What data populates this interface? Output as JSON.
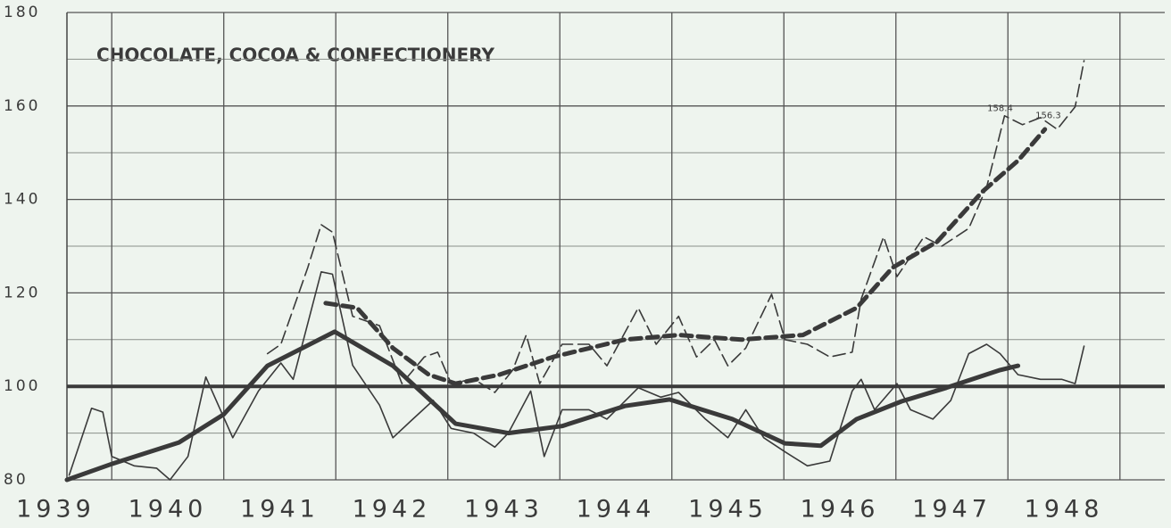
{
  "chart_data": {
    "type": "line",
    "title": "CHOCOLATE, COCOA & CONFECTIONERY",
    "xlim": [
      1939.6,
      1949.4
    ],
    "xticks": [
      {
        "value": 1939.5,
        "label": "1939"
      },
      {
        "value": 1940.5,
        "label": "1940"
      },
      {
        "value": 1941.5,
        "label": "1941"
      },
      {
        "value": 1942.5,
        "label": "1942"
      },
      {
        "value": 1943.5,
        "label": "1943"
      },
      {
        "value": 1944.5,
        "label": "1944"
      },
      {
        "value": 1945.5,
        "label": "1945"
      },
      {
        "value": 1946.5,
        "label": "1946"
      },
      {
        "value": 1947.5,
        "label": "1947"
      },
      {
        "value": 1948.5,
        "label": "1948"
      }
    ],
    "xgrid": [
      1940,
      1941,
      1942,
      1943,
      1944,
      1945,
      1946,
      1947,
      1948,
      1949
    ],
    "ylim": [
      80,
      180
    ],
    "yticks": [
      80,
      100,
      120,
      140,
      160,
      180
    ],
    "yminor": [
      90,
      110,
      130,
      150,
      170
    ],
    "reference_line": 100,
    "grid": true,
    "color": "#3a3a3a",
    "series": [
      {
        "weight": "thin",
        "dashed": false,
        "x": [
          1939.62,
          1939.82,
          1939.92,
          1940.0,
          1940.2,
          1940.4,
          1940.52,
          1940.68,
          1940.84,
          1941.08,
          1941.31,
          1941.51,
          1941.62,
          1941.87,
          1941.97,
          1942.15,
          1942.39,
          1942.51,
          1942.67,
          1942.87,
          1943.03,
          1943.23,
          1943.42,
          1943.54,
          1943.74,
          1943.86,
          1944.02,
          1944.26,
          1944.42,
          1944.7,
          1944.9,
          1945.06,
          1945.3,
          1945.5,
          1945.66,
          1945.82,
          1946.01,
          1946.21,
          1946.41,
          1946.61,
          1946.69,
          1946.81,
          1947.01,
          1947.13,
          1947.33,
          1947.49,
          1947.65,
          1947.81,
          1947.93,
          1948.09,
          1948.29,
          1948.48,
          1948.6,
          1948.68
        ],
        "values": [
          81,
          95.3,
          94.5,
          85,
          83,
          82.5,
          80,
          85,
          102,
          89,
          99,
          105,
          101.5,
          124.5,
          124,
          104.5,
          96,
          89,
          92.6,
          97,
          91,
          90,
          87,
          90,
          99,
          85,
          95,
          95,
          93,
          99.7,
          97.7,
          98.7,
          93,
          89,
          95,
          89,
          86,
          83,
          84,
          99,
          101.5,
          95,
          100.6,
          95,
          93,
          97,
          107,
          109,
          107,
          102.5,
          101.5,
          101.5,
          100.6,
          108.6
        ]
      },
      {
        "weight": "thick",
        "dashed": false,
        "x": [
          1939.6,
          1940.0,
          1940.6,
          1941.0,
          1941.39,
          1941.99,
          1942.51,
          1943.07,
          1943.54,
          1944.02,
          1944.58,
          1944.98,
          1945.54,
          1946.01,
          1946.33,
          1946.65,
          1947.05,
          1947.45,
          1947.93,
          1948.09
        ],
        "values": [
          80,
          83.4,
          88,
          94,
          104.4,
          111.7,
          104.4,
          92,
          90,
          91.5,
          95.8,
          97.2,
          93,
          87.8,
          87.3,
          93,
          96.8,
          99.7,
          103.5,
          104.4
        ]
      },
      {
        "weight": "thin",
        "dashed": true,
        "x": [
          1941.39,
          1941.51,
          1941.75,
          1941.87,
          1941.97,
          1942.15,
          1942.39,
          1942.59,
          1942.79,
          1942.91,
          1943.03,
          1943.23,
          1943.42,
          1943.58,
          1943.7,
          1943.82,
          1944.02,
          1944.26,
          1944.42,
          1944.7,
          1944.86,
          1945.06,
          1945.22,
          1945.38,
          1945.5,
          1945.66,
          1945.89,
          1946.01,
          1946.21,
          1946.41,
          1946.61,
          1946.69,
          1946.89,
          1947.01,
          1947.25,
          1947.41,
          1947.65,
          1947.81,
          1947.97,
          1948.13,
          1948.29,
          1948.44,
          1948.6,
          1948.68
        ],
        "values": [
          107,
          109,
          125.4,
          134.6,
          133,
          115,
          113,
          100.6,
          106.3,
          107.3,
          100.6,
          101.6,
          98.7,
          103.5,
          111,
          100.6,
          109,
          109,
          104.4,
          116.8,
          109,
          115,
          106.3,
          110,
          104.4,
          108.2,
          119.7,
          110,
          109,
          106.3,
          107.3,
          118.7,
          132,
          123.5,
          132,
          130,
          133.8,
          142.6,
          157.9,
          156,
          157.5,
          155,
          159.8,
          169.7
        ]
      },
      {
        "weight": "thick",
        "dashed": true,
        "x": [
          1941.91,
          1942.19,
          1942.51,
          1942.83,
          1943.07,
          1943.46,
          1943.94,
          1944.58,
          1945.06,
          1945.62,
          1946.17,
          1946.65,
          1946.97,
          1947.37,
          1947.77,
          1948.09,
          1948.33
        ],
        "values": [
          117.8,
          116.8,
          108.2,
          102.5,
          100.6,
          102.5,
          106.3,
          110,
          111,
          110,
          111,
          116.8,
          125.4,
          131,
          141.6,
          148.3,
          155
        ]
      }
    ],
    "annotations": [
      {
        "text": "158.4",
        "x": 1947.93,
        "y": 159.5
      },
      {
        "text": "156.3",
        "x": 1948.36,
        "y": 158
      }
    ]
  }
}
